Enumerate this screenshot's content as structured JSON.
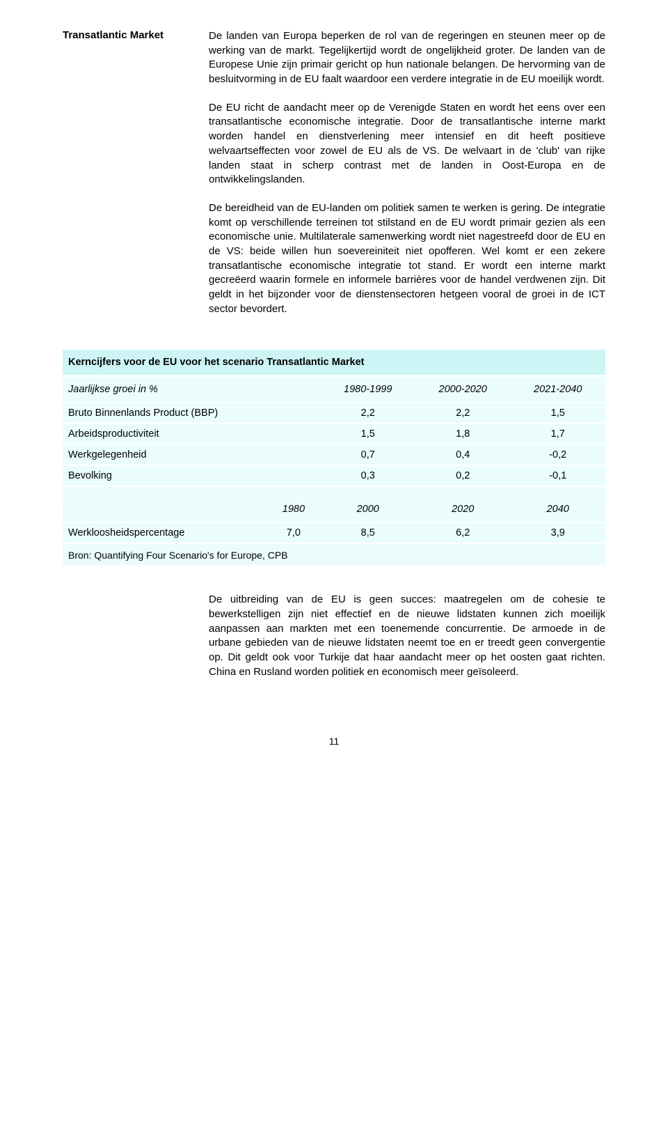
{
  "section": {
    "title": "Transatlantic Market",
    "paragraphs": [
      "De landen van Europa beperken de rol van de regeringen en steunen meer op de werking van de markt. Tegelijkertijd wordt de ongelijkheid groter. De landen van de Europese Unie zijn primair gericht op hun nationale belangen. De hervorming van de besluitvorming in de EU faalt waardoor een verdere integratie in de EU moeilijk wordt.",
      "De EU richt de aandacht meer op de Verenigde Staten en wordt het eens over een transatlantische economische integratie. Door de transatlantische interne markt worden handel en dienstverlening meer intensief en dit heeft positieve welvaartseffecten voor zowel de EU als de VS. De welvaart in de 'club' van rijke landen staat in scherp contrast met de landen in Oost-Europa en de ontwikkelingslanden.",
      "De bereidheid van de EU-landen om politiek samen te werken is gering. De integratie komt op verschillende terreinen tot stilstand en de EU wordt primair gezien als een economische unie. Multilaterale samenwerking wordt niet nagestreefd door de EU en de VS: beide willen hun soevereiniteit niet opofferen. Wel komt er een zekere transatlantische economische integratie tot stand. Er wordt een interne markt gecreëerd waarin formele en informele barrières voor de handel verdwenen zijn. Dit geldt in het bijzonder voor de dienstensectoren hetgeen vooral de groei in de ICT sector bevordert."
    ]
  },
  "table": {
    "title": "Kerncijfers voor de EU voor het scenario Transatlantic Market",
    "group1": {
      "header": [
        "Jaarlijkse groei in %",
        "1980-1999",
        "2000-2020",
        "2021-2040"
      ],
      "rows": [
        {
          "label": "Bruto Binnenlands Product (BBP)",
          "values": [
            "2,2",
            "2,2",
            "1,5"
          ]
        },
        {
          "label": "Arbeidsproductiviteit",
          "values": [
            "1,5",
            "1,8",
            "1,7"
          ]
        },
        {
          "label": "Werkgelegenheid",
          "values": [
            "0,7",
            "0,4",
            "-0,2"
          ]
        },
        {
          "label": "Bevolking",
          "values": [
            "0,3",
            "0,2",
            "-0,1"
          ]
        }
      ]
    },
    "group2": {
      "header": [
        "",
        "1980",
        "2000",
        "2020",
        "2040"
      ],
      "rows": [
        {
          "label": "Werkloosheidspercentage",
          "values": [
            "7,0",
            "8,5",
            "6,2",
            "3,9"
          ]
        }
      ]
    },
    "source": "Bron: Quantifying Four Scenario's for Europe, CPB"
  },
  "afterTable": {
    "paragraph": "De uitbreiding van de EU is geen succes: maatregelen om de cohesie te bewerkstelligen zijn niet effectief en de nieuwe lidstaten kunnen zich moeilijk aanpassen aan markten met een toenemende concurrentie. De armoede in de urbane gebieden van de nieuwe lidstaten neemt toe en er treedt geen convergentie op. Dit geldt ook voor Turkije dat haar aandacht meer op het oosten gaat richten. China en Rusland worden politiek en economisch meer geïsoleerd."
  },
  "pageNumber": "11",
  "colors": {
    "headerBg": "#cdf5f5",
    "rowBg": "#eafcfc",
    "text": "#000000",
    "pageBg": "#ffffff"
  }
}
